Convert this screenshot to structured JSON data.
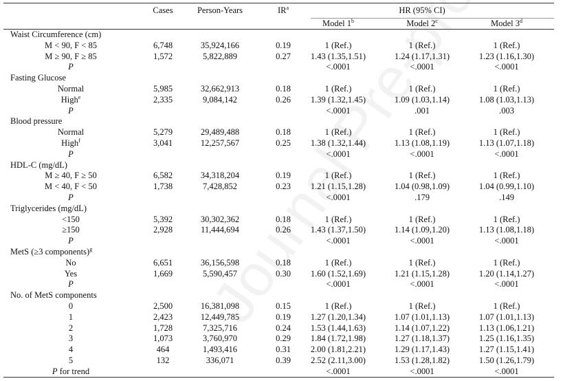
{
  "watermark": "Journal Pre-proof",
  "header": {
    "cases": "Cases",
    "person_years": "Person-Years",
    "ir": "IR",
    "ir_sup": "a",
    "hr_group": "HR (95% CI)",
    "model1": "Model 1",
    "model1_sup": "b",
    "model2": "Model 2",
    "model2_sup": "c",
    "model3": "Model 3",
    "model3_sup": "d"
  },
  "rows": [
    {
      "type": "group",
      "label": "Waist Circumference (cm)"
    },
    {
      "type": "data",
      "label": "M < 90, F < 85",
      "cases": "6,748",
      "py": "35,924,166",
      "ir": "0.19",
      "m1": "1 (Ref.)",
      "m2": "1 (Ref.)",
      "m3": "1 (Ref.)"
    },
    {
      "type": "data",
      "label": "M ≥ 90, F ≥ 85",
      "cases": "1,572",
      "py": "5,822,889",
      "ir": "0.27",
      "m1": "1.43 (1.35,1.51)",
      "m2": "1.24 (1.17,1.31)",
      "m3": "1.23 (1.16,1.30)"
    },
    {
      "type": "p",
      "label": "P",
      "m1": "<.0001",
      "m2": "<.0001",
      "m3": "<.0001"
    },
    {
      "type": "group",
      "label": "Fasting Glucose"
    },
    {
      "type": "data",
      "label": "Normal",
      "cases": "5,985",
      "py": "32,662,913",
      "ir": "0.18",
      "m1": "1 (Ref.)",
      "m2": "1 (Ref.)",
      "m3": "1 (Ref.)"
    },
    {
      "type": "data",
      "label": "High",
      "sup": "e",
      "cases": "2,335",
      "py": "9,084,142",
      "ir": "0.26",
      "m1": "1.39 (1.32,1.45)",
      "m2": "1.09 (1.03,1.14)",
      "m3": "1.08 (1.03,1.13)"
    },
    {
      "type": "p",
      "label": "P",
      "m1": "<.0001",
      "m2": ".001",
      "m3": ".003"
    },
    {
      "type": "group",
      "label": "Blood pressure"
    },
    {
      "type": "data",
      "label": "Normal",
      "cases": "5,279",
      "py": "29,489,488",
      "ir": "0.18",
      "m1": "1 (Ref.)",
      "m2": "1 (Ref.)",
      "m3": "1 (Ref.)"
    },
    {
      "type": "data",
      "label": "High",
      "sup": "f",
      "cases": "3,041",
      "py": "12,257,567",
      "ir": "0.25",
      "m1": "1.38 (1.32,1.44)",
      "m2": "1.13 (1.08,1.19)",
      "m3": "1.13 (1.07,1.18)"
    },
    {
      "type": "p",
      "label": "P",
      "m1": "<.0001",
      "m2": "<.0001",
      "m3": "<.0001"
    },
    {
      "type": "group",
      "label": "HDL-C (mg/dL)"
    },
    {
      "type": "data",
      "label": "M ≥ 40, F ≥ 50",
      "cases": "6,582",
      "py": "34,318,204",
      "ir": "0.19",
      "m1": "1 (Ref.)",
      "m2": "1 (Ref.)",
      "m3": "1 (Ref.)"
    },
    {
      "type": "data",
      "label": "M < 40, F < 50",
      "cases": "1,738",
      "py": "7,428,852",
      "ir": "0.23",
      "m1": "1.21 (1.15,1.28)",
      "m2": "1.04 (0.98,1.09)",
      "m3": "1.04 (0.99,1.10)"
    },
    {
      "type": "p",
      "label": "P",
      "m1": "<.0001",
      "m2": ".179",
      "m3": ".149"
    },
    {
      "type": "group",
      "label": "Triglycerides (mg/dL)"
    },
    {
      "type": "data",
      "label": "<150",
      "cases": "5,392",
      "py": "30,302,362",
      "ir": "0.18",
      "m1": "1 (Ref.)",
      "m2": "1 (Ref.)",
      "m3": "1 (Ref.)"
    },
    {
      "type": "data",
      "label": "≥150",
      "cases": "2,928",
      "py": "11,444,694",
      "ir": "0.26",
      "m1": "1.43 (1.37,1.50)",
      "m2": "1.14 (1.09,1.20)",
      "m3": "1.13 (1.08,1.18)"
    },
    {
      "type": "p",
      "label": "P",
      "m1": "<.0001",
      "m2": "<.0001",
      "m3": "<.0001"
    },
    {
      "type": "group",
      "label": "MetS (≥3 components)",
      "sup": "g"
    },
    {
      "type": "data",
      "label": "No",
      "cases": "6,651",
      "py": "36,156,598",
      "ir": "0.18",
      "m1": "1 (Ref.)",
      "m2": "1 (Ref.)",
      "m3": "1 (Ref.)"
    },
    {
      "type": "data",
      "label": "Yes",
      "cases": "1,669",
      "py": "5,590,457",
      "ir": "0.30",
      "m1": "1.60 (1.52,1.69)",
      "m2": "1.21 (1.15,1.28)",
      "m3": "1.20 (1.14,1.27)"
    },
    {
      "type": "p",
      "label": "P",
      "m1": "<.0001",
      "m2": "<.0001",
      "m3": "<.0001"
    },
    {
      "type": "group",
      "label": "No. of MetS components"
    },
    {
      "type": "data",
      "label": "0",
      "cases": "2,500",
      "py": "16,381,098",
      "ir": "0.15",
      "m1": "1 (Ref.)",
      "m2": "1 (Ref.)",
      "m3": "1 (Ref.)"
    },
    {
      "type": "data",
      "label": "1",
      "cases": "2,423",
      "py": "12,449,785",
      "ir": "0.19",
      "m1": "1.27 (1.20,1.34)",
      "m2": "1.07 (1.01,1.13)",
      "m3": "1.07 (1.01,1.13)"
    },
    {
      "type": "data",
      "label": "2",
      "cases": "1,728",
      "py": "7,325,716",
      "ir": "0.24",
      "m1": "1.53 (1.44,1.63)",
      "m2": "1.14 (1.07,1.22)",
      "m3": "1.13 (1.06,1.21)"
    },
    {
      "type": "data",
      "label": "3",
      "cases": "1,073",
      "py": "3,760,970",
      "ir": "0.29",
      "m1": "1.84 (1.72,1.98)",
      "m2": "1.27 (1.18,1.37)",
      "m3": "1.25 (1.16,1.35)"
    },
    {
      "type": "data",
      "label": "4",
      "cases": "464",
      "py": "1,493,416",
      "ir": "0.31",
      "m1": "2.00 (1.81,2.21)",
      "m2": "1.29 (1.17,1.43)",
      "m3": "1.27 (1.15,1.41)"
    },
    {
      "type": "data",
      "label": "5",
      "cases": "132",
      "py": "336,071",
      "ir": "0.39",
      "m1": "2.52 (2.11,3.00)",
      "m2": "1.53 (1.28,1.82)",
      "m3": "1.50 (1.26,1.79)"
    },
    {
      "type": "p",
      "label": "P",
      "label_suffix": " for trend",
      "m1": "<.0001",
      "m2": "<.0001",
      "m3": "<.0001"
    }
  ]
}
